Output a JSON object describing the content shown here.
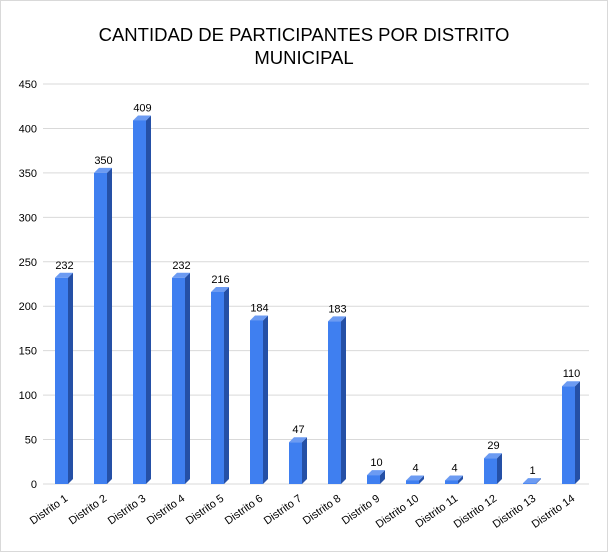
{
  "chart_data": {
    "type": "bar",
    "title": "CANTIDAD DE PARTICIPANTES POR DISTRITO MUNICIPAL",
    "title_lines": [
      "CANTIDAD DE PARTICIPANTES POR DISTRITO",
      "MUNICIPAL"
    ],
    "xlabel": "",
    "ylabel": "",
    "categories": [
      "Distrito 1",
      "Distrito 2",
      "Distrito 3",
      "Distrito 4",
      "Distrito 5",
      "Distrito 6",
      "Distrito 7",
      "Distrito 8",
      "Distrito 9",
      "Distrito 10",
      "Distrito 11",
      "Distrito 12",
      "Distrito 13",
      "Distrito 14"
    ],
    "values": [
      232,
      350,
      409,
      232,
      216,
      184,
      47,
      183,
      10,
      4,
      4,
      29,
      1,
      110
    ],
    "ylim": [
      0,
      450
    ],
    "yticks": [
      0,
      50,
      100,
      150,
      200,
      250,
      300,
      350,
      400,
      450
    ],
    "grid": true,
    "legend": "none",
    "data_labels": true,
    "bar_style": "3d",
    "colors": {
      "bar_front": "#3f7ff0",
      "bar_side": "#2550a6",
      "bar_top": "#6c9bf2",
      "grid": "#d9d9d9",
      "axis_text": "#000000"
    }
  }
}
